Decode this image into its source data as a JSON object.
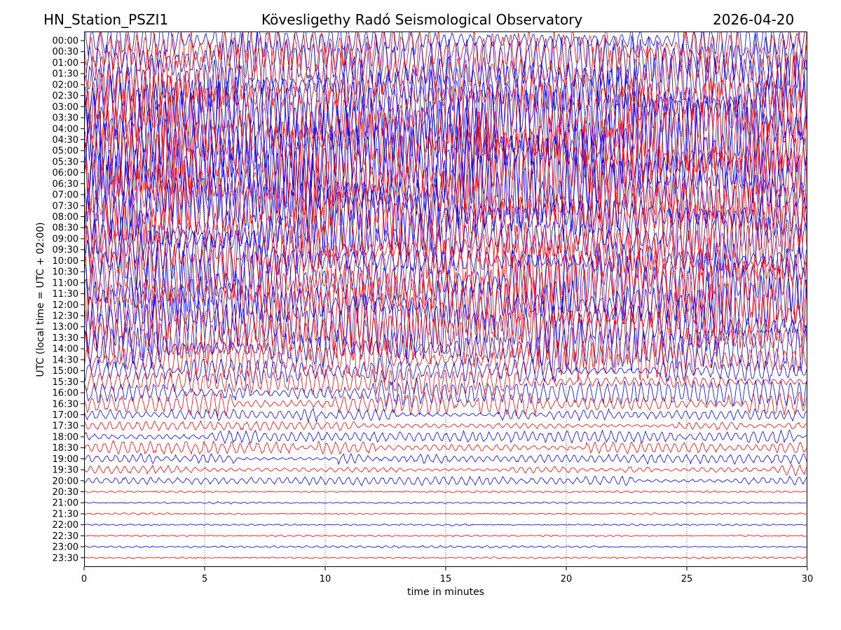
{
  "header": {
    "station": "HN_Station_PSZI1",
    "title": "Kövesligethy Radó Seismological Observatory",
    "date": "2026-04-20"
  },
  "chart_data": {
    "type": "line",
    "title": "Kövesligethy Radó Seismological Observatory",
    "xlabel": "time in minutes",
    "ylabel": "UTC (local time = UTC + 02:00)",
    "xlim": [
      0,
      30
    ],
    "xticks": [
      "0",
      "5",
      "10",
      "15",
      "20",
      "25",
      "30"
    ],
    "xtick_values": [
      0,
      5,
      10,
      15,
      20,
      25,
      30
    ],
    "grid": "vertical dotted at x ticks",
    "colors": [
      "#0000ff",
      "#ff0000"
    ],
    "rows": [
      "00:00",
      "00:30",
      "01:00",
      "01:30",
      "02:00",
      "02:30",
      "03:00",
      "03:30",
      "04:00",
      "04:30",
      "05:00",
      "05:30",
      "06:00",
      "06:30",
      "07:00",
      "07:30",
      "08:00",
      "08:30",
      "09:00",
      "09:30",
      "10:00",
      "10:30",
      "11:00",
      "11:30",
      "12:00",
      "12:30",
      "13:00",
      "13:30",
      "14:00",
      "14:30",
      "15:00",
      "15:30",
      "16:00",
      "16:30",
      "17:00",
      "17:30",
      "18:00",
      "18:30",
      "19:00",
      "19:30",
      "20:00",
      "20:30",
      "21:00",
      "21:30",
      "22:00",
      "22:30",
      "23:00",
      "23:30"
    ],
    "relative_amplitude": [
      1.4,
      1.6,
      1.8,
      2.0,
      2.2,
      2.4,
      2.6,
      2.8,
      3.0,
      3.2,
      3.4,
      3.4,
      3.4,
      3.2,
      3.0,
      2.8,
      2.6,
      2.4,
      2.2,
      2.0,
      2.0,
      2.2,
      2.4,
      2.6,
      2.6,
      2.4,
      2.2,
      2.0,
      1.8,
      1.4,
      0.9,
      0.9,
      0.9,
      0.8,
      0.45,
      0.4,
      0.4,
      0.4,
      0.35,
      0.35,
      0.3,
      0.06,
      0.05,
      0.05,
      0.05,
      0.05,
      0.07,
      0.05
    ]
  }
}
